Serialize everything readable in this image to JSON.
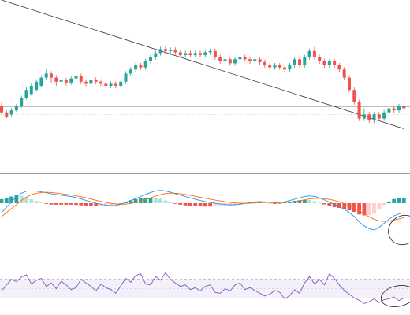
{
  "chart_data": [
    {
      "type": "candlestick",
      "title": "",
      "overlays": {
        "trendline": {
          "from": [
            0,
            112
          ],
          "to": [
            81,
            80.5
          ]
        },
        "horizontal_level": 86,
        "dashed_level": 84
      },
      "candles": [
        [
          86,
          84.5,
          87,
          84
        ],
        [
          84.5,
          83.5,
          85,
          83
        ],
        [
          84,
          85,
          85.6,
          83.5
        ],
        [
          85,
          86,
          86.6,
          84.6
        ],
        [
          86,
          88,
          88.6,
          85.6
        ],
        [
          88,
          90,
          90.6,
          87.6
        ],
        [
          89,
          91,
          91.6,
          88.6
        ],
        [
          90,
          92,
          92.6,
          89.6
        ],
        [
          91,
          93,
          93.6,
          90.6
        ],
        [
          93,
          94,
          95,
          92.5
        ],
        [
          94,
          93,
          94.6,
          91.6
        ],
        [
          93,
          92,
          93.6,
          91
        ],
        [
          92,
          92.5,
          93.1,
          91.5
        ],
        [
          92.5,
          91.8,
          93,
          91
        ],
        [
          91.8,
          92.8,
          93.4,
          91.2
        ],
        [
          92.8,
          93.5,
          94.1,
          92.2
        ],
        [
          93.5,
          92,
          94,
          91.4
        ],
        [
          92,
          91.5,
          92.6,
          90.9
        ],
        [
          91.5,
          92.5,
          93.1,
          90.9
        ],
        [
          92.5,
          92,
          93.1,
          91.4
        ],
        [
          92,
          91.5,
          92.6,
          90.9
        ],
        [
          91.5,
          91,
          92.1,
          90.4
        ],
        [
          91,
          91.5,
          92.1,
          90.4
        ],
        [
          91.5,
          91,
          92.1,
          90.4
        ],
        [
          91,
          92,
          92.6,
          90.4
        ],
        [
          92,
          94,
          94.6,
          91.4
        ],
        [
          94,
          95,
          95.6,
          93.4
        ],
        [
          95,
          96,
          96.6,
          94.4
        ],
        [
          96,
          95.5,
          96.6,
          94.9
        ],
        [
          95.5,
          97,
          97.6,
          94.9
        ],
        [
          97,
          98,
          98.6,
          96.4
        ],
        [
          98,
          99,
          99.6,
          97.4
        ],
        [
          99,
          100,
          100.6,
          98.4
        ],
        [
          100,
          99.5,
          100.6,
          98.9
        ],
        [
          99.5,
          99.8,
          100.4,
          98.9
        ],
        [
          99.8,
          99.2,
          100.4,
          98.6
        ],
        [
          99.2,
          98.5,
          99.8,
          97.9
        ],
        [
          98.5,
          99,
          99.6,
          97.9
        ],
        [
          99,
          98.5,
          99.6,
          97.9
        ],
        [
          98.5,
          99,
          99.6,
          97.9
        ],
        [
          99,
          98.5,
          99.6,
          97.9
        ],
        [
          98.5,
          99.2,
          99.8,
          97.9
        ],
        [
          99.2,
          99.5,
          100.1,
          98.6
        ],
        [
          99.5,
          98,
          100.1,
          97.4
        ],
        [
          98,
          97,
          98.6,
          96.4
        ],
        [
          97,
          97.5,
          98.1,
          96.4
        ],
        [
          97.5,
          96.5,
          98.1,
          95.9
        ],
        [
          96.5,
          97.5,
          98.1,
          95.9
        ],
        [
          97.5,
          98,
          98.6,
          96.9
        ],
        [
          98,
          97.5,
          98.6,
          96.9
        ],
        [
          97.5,
          97,
          98.1,
          96.4
        ],
        [
          97,
          97.5,
          98.1,
          96.4
        ],
        [
          97.5,
          96.8,
          98.1,
          96.2
        ],
        [
          96.8,
          96,
          97.4,
          95.4
        ],
        [
          96,
          95.5,
          96.6,
          94.9
        ],
        [
          95.5,
          96,
          96.6,
          94.9
        ],
        [
          96,
          95.5,
          96.6,
          94.9
        ],
        [
          95.5,
          95,
          96.1,
          94.4
        ],
        [
          95,
          96,
          96.6,
          94.4
        ],
        [
          96,
          97.5,
          98.1,
          95.4
        ],
        [
          97.5,
          96,
          98.1,
          95.4
        ],
        [
          96,
          98,
          98.6,
          95.4
        ],
        [
          98,
          99.5,
          100.1,
          97.4
        ],
        [
          99.5,
          98,
          100.5,
          97.4
        ],
        [
          98,
          97,
          98.6,
          96.4
        ],
        [
          97,
          96,
          97.6,
          95.4
        ],
        [
          96,
          97,
          97.6,
          95.4
        ],
        [
          97,
          96,
          97.6,
          95.4
        ],
        [
          96,
          95,
          96.6,
          94.4
        ],
        [
          95,
          93,
          95.6,
          92.4
        ],
        [
          93,
          90,
          93.6,
          89.4
        ],
        [
          90,
          87,
          90.6,
          86.4
        ],
        [
          87,
          83,
          87.6,
          82.4
        ],
        [
          83,
          84,
          85.5,
          82.4
        ],
        [
          84,
          82.5,
          84.6,
          81.9
        ],
        [
          82.5,
          84,
          84.6,
          81.9
        ],
        [
          84,
          83,
          84.6,
          82.4
        ],
        [
          83,
          84.5,
          85.1,
          82.4
        ],
        [
          84.5,
          85.5,
          86.1,
          83.9
        ],
        [
          85.5,
          85,
          86.1,
          84.4
        ],
        [
          85,
          86,
          86.6,
          84.4
        ],
        [
          86,
          85.5,
          86.6,
          84.9
        ]
      ]
    },
    {
      "type": "macd",
      "title": "",
      "series": [
        {
          "values": [
            -7,
            -3,
            1,
            5,
            7.5,
            9,
            9.2,
            9,
            8.5,
            7.8,
            7,
            6.5,
            6,
            5.5,
            5,
            4.2,
            3.2,
            2,
            1,
            0,
            -0.8,
            -1.5,
            -1.8,
            -1.6,
            -0.8,
            0.5,
            2,
            3.5,
            5,
            6.5,
            8,
            9.2,
            9.6,
            9.2,
            8.2,
            7,
            6,
            5,
            4,
            3,
            2,
            1.2,
            0.5,
            0,
            -0.5,
            -1,
            -1.2,
            -1.2,
            -0.8,
            -0.2,
            0.5,
            1,
            1.2,
            1,
            0.5,
            0.2,
            0.5,
            1,
            2,
            3,
            4,
            5,
            5.5,
            5,
            4,
            2.5,
            0.8,
            -1,
            -2.5,
            -4.5,
            -7,
            -10,
            -14,
            -17,
            -19,
            -20,
            -18,
            -15,
            -12,
            -9.5,
            -8,
            -7
          ]
        },
        {
          "values": [
            -10,
            -7,
            -4,
            -1,
            2,
            4.5,
            6.3,
            7.4,
            8,
            8.2,
            8,
            7.6,
            7.1,
            6.6,
            6.1,
            5.5,
            4.8,
            4,
            3.1,
            2.2,
            1.3,
            0.5,
            -0.1,
            -0.6,
            -0.8,
            -0.7,
            -0.2,
            0.5,
            1.5,
            2.7,
            4,
            5.3,
            6.4,
            7.2,
            7.6,
            7.5,
            7.1,
            6.6,
            5.9,
            5.2,
            4.4,
            3.7,
            3,
            2.3,
            1.7,
            1.1,
            0.6,
            0.2,
            0,
            -0.1,
            0,
            0.2,
            0.4,
            0.5,
            0.5,
            0.4,
            0.4,
            0.5,
            0.8,
            1.2,
            1.8,
            2.5,
            3.2,
            3.6,
            3.7,
            3.4,
            2.8,
            2,
            1,
            -0.3,
            -1.7,
            -3.5,
            -5.6,
            -7.9,
            -10.1,
            -12,
            -13.2,
            -13.6,
            -13.3,
            -12.6,
            -11.7,
            -10.8
          ]
        }
      ],
      "histogram": [
        3,
        4,
        5,
        6,
        5.5,
        4.5,
        3,
        1.6,
        0.5,
        -0.4,
        -1,
        -1.1,
        -1.1,
        -1.1,
        -1.1,
        -1.3,
        -1.6,
        -2,
        -2.1,
        -2.2,
        -2.1,
        -2,
        -1.7,
        -1,
        0,
        1.2,
        2.2,
        3,
        3.5,
        3.8,
        4,
        3.9,
        3.2,
        2,
        0.6,
        -0.5,
        -1.1,
        -1.6,
        -1.9,
        -2.2,
        -2.4,
        -2.5,
        -2.5,
        -2.3,
        -2.2,
        -2.1,
        -1.8,
        -1.4,
        -0.8,
        -0.1,
        0.5,
        0.8,
        0.8,
        0.5,
        0,
        -0.2,
        0.1,
        0.5,
        1.2,
        1.8,
        2.2,
        2.5,
        2.3,
        1.4,
        0.3,
        -0.9,
        -2,
        -3,
        -3.5,
        -4.2,
        -5.3,
        -6.5,
        -8.4,
        -9.1,
        -8.9,
        -8,
        -4.8,
        -1.4,
        1.3,
        3.1,
        3.7,
        3.8
      ]
    },
    {
      "type": "rsi",
      "title": "",
      "levels": [
        70,
        30
      ],
      "ylim": [
        0,
        100
      ],
      "values": [
        45,
        58,
        70,
        65,
        75,
        80,
        60,
        68,
        72,
        55,
        62,
        50,
        66,
        58,
        48,
        52,
        70,
        62,
        55,
        45,
        60,
        52,
        48,
        40,
        56,
        72,
        64,
        78,
        82,
        60,
        58,
        76,
        68,
        84,
        70,
        62,
        55,
        58,
        48,
        52,
        45,
        55,
        58,
        42,
        40,
        50,
        45,
        58,
        62,
        48,
        52,
        46,
        40,
        34,
        38,
        46,
        42,
        28,
        35,
        48,
        40,
        62,
        76,
        60,
        70,
        58,
        82,
        72,
        58,
        46,
        38,
        30,
        25,
        18,
        22,
        28,
        20,
        26,
        28,
        32,
        24,
        30
      ]
    }
  ]
}
